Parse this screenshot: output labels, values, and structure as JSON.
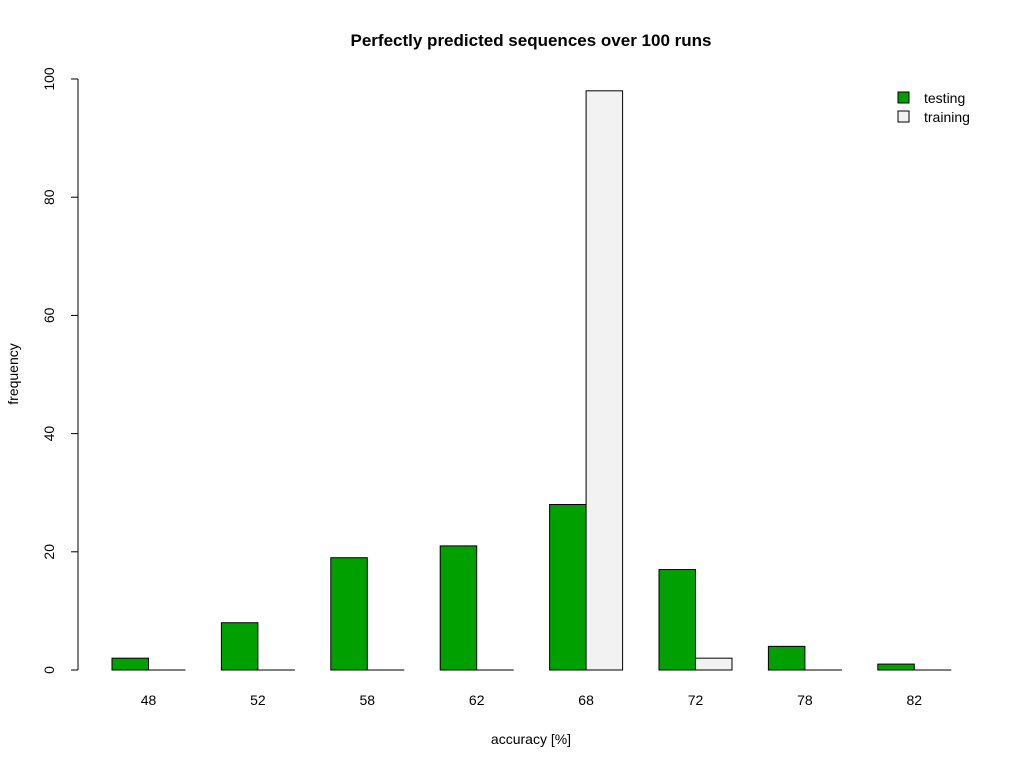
{
  "chart_data": {
    "type": "bar",
    "title": "Perfectly predicted sequences over 100 runs",
    "xlabel": "accuracy [%]",
    "ylabel": "frequency",
    "categories": [
      "48",
      "52",
      "58",
      "62",
      "68",
      "72",
      "78",
      "82"
    ],
    "series": [
      {
        "name": "testing",
        "color": "#00a000",
        "values": [
          2,
          8,
          19,
          21,
          28,
          17,
          4,
          1
        ]
      },
      {
        "name": "training",
        "color": "#f2f2f2",
        "values": [
          0,
          0,
          0,
          0,
          98,
          2,
          0,
          0
        ]
      }
    ],
    "ylim": [
      0,
      100
    ],
    "yticks": [
      0,
      20,
      40,
      60,
      80,
      100
    ],
    "grid": false,
    "legend_position": "top-right"
  }
}
